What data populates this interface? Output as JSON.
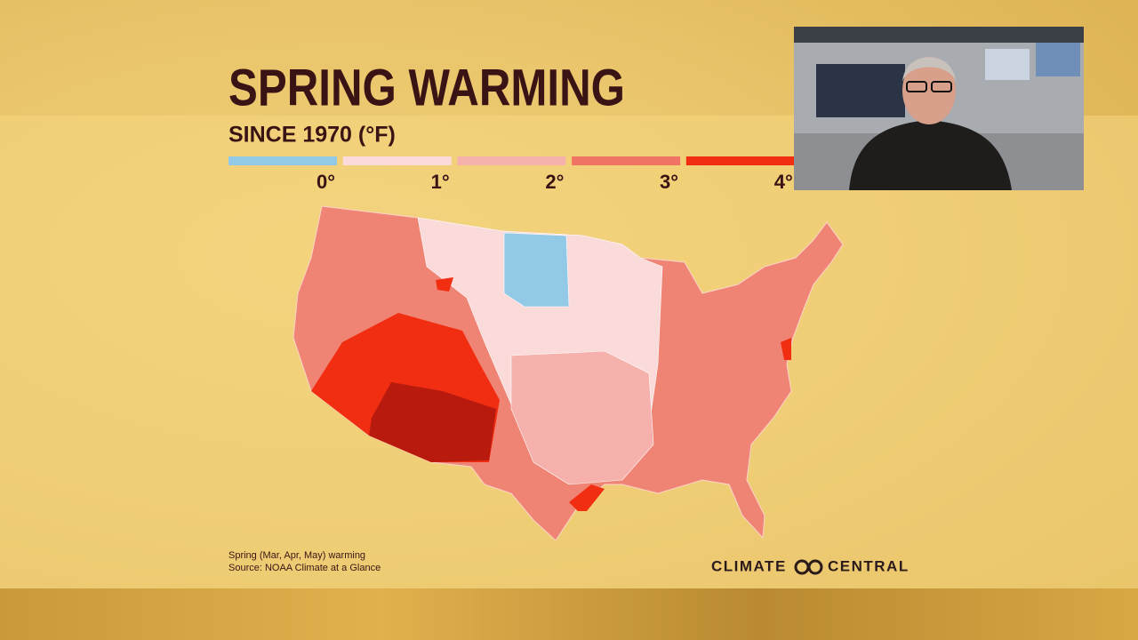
{
  "header": {
    "title": "SPRING WARMING",
    "subtitle": "SINCE 1970 (°F)"
  },
  "legend": {
    "colors": [
      "#92c9e6",
      "#fbdada",
      "#f6b1ac",
      "#f07464",
      "#f22e12"
    ],
    "labels": [
      "0°",
      "1°",
      "2°",
      "3°",
      "4°"
    ]
  },
  "footer": {
    "note": "Spring (Mar, Apr, May) warming",
    "source": "Source: NOAA Climate at a Glance",
    "logo": [
      "CLIMATE",
      "CENTRAL"
    ]
  }
}
